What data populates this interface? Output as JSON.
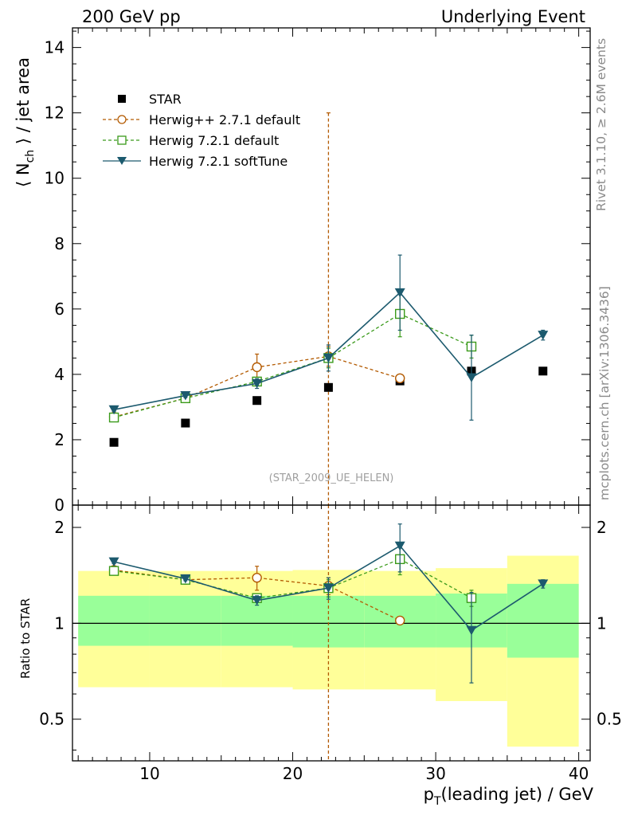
{
  "header": {
    "left": "200 GeV pp",
    "right": "Underlying Event"
  },
  "side_labels": {
    "rivet": "Rivet 3.1.10, ≥ 2.6M events",
    "mcplots": "mcplots.cern.ch [arXiv:1306.3436]"
  },
  "watermark": "(STAR_2009_UE_HELEN)",
  "colors": {
    "star": "#000000",
    "herwigpp": "#b35a00",
    "herwig_default": "#3a9a1a",
    "herwig_soft": "#1c5a6e",
    "band_inner": "#99ff99",
    "band_outer": "#ffff99"
  },
  "chart_data": [
    {
      "id": "main",
      "type": "scatter",
      "ylabel_main": "⟨ N",
      "ylabel_sub": "ch",
      "ylabel_tail": " ⟩ / jet area",
      "ylim": [
        0,
        14.6
      ],
      "xlim": [
        4.6,
        40.8
      ],
      "yticks": [
        0,
        2,
        4,
        6,
        8,
        10,
        12,
        14
      ],
      "ytick_labels": [
        "0",
        "2",
        "4",
        "6",
        "8",
        "10",
        "12",
        "14"
      ],
      "legend": [
        {
          "key": "star",
          "label": "STAR"
        },
        {
          "key": "herwigpp",
          "label": "Herwig++ 2.7.1 default"
        },
        {
          "key": "herwig_default",
          "label": "Herwig 7.2.1 default"
        },
        {
          "key": "herwig_soft",
          "label": "Herwig 7.2.1 softTune"
        }
      ],
      "series": [
        {
          "key": "star",
          "name": "STAR",
          "style": "square-filled",
          "line": "none",
          "x": [
            7.5,
            12.5,
            17.5,
            22.5,
            27.5,
            32.5,
            37.5
          ],
          "y": [
            1.92,
            2.51,
            3.2,
            3.6,
            3.8,
            4.1,
            4.1
          ],
          "err": [
            0,
            0,
            0,
            0,
            0,
            0,
            0
          ]
        },
        {
          "key": "herwigpp",
          "name": "Herwig++ 2.7.1 default",
          "style": "circle-open",
          "line": "dashed",
          "x": [
            7.5,
            12.5,
            17.5,
            22.5,
            27.5
          ],
          "y": [
            2.7,
            3.27,
            4.22,
            4.55,
            3.88
          ],
          "err": [
            0.05,
            0.06,
            0.4,
            0.3,
            0.1
          ]
        },
        {
          "key": "herwig_default",
          "name": "Herwig 7.2.1 default",
          "style": "square-open",
          "line": "dashed",
          "x": [
            7.5,
            12.5,
            17.5,
            22.5,
            27.5,
            32.5
          ],
          "y": [
            2.68,
            3.27,
            3.78,
            4.5,
            5.85,
            4.85
          ],
          "err": [
            0.05,
            0.07,
            0.12,
            0.3,
            0.7,
            0.35
          ]
        },
        {
          "key": "herwig_soft",
          "name": "Herwig 7.2.1 softTune",
          "style": "triangle-down",
          "line": "solid",
          "x": [
            7.5,
            12.5,
            17.5,
            22.5,
            27.5,
            32.5,
            37.5
          ],
          "y": [
            2.92,
            3.35,
            3.72,
            4.5,
            6.5,
            3.9,
            5.2
          ],
          "err": [
            0.05,
            0.06,
            0.15,
            0.4,
            1.15,
            1.3,
            0.15
          ]
        }
      ],
      "spike": {
        "x": 22.5,
        "ymin": 0,
        "ymax": 12.0,
        "key": "herwigpp"
      }
    },
    {
      "id": "ratio",
      "type": "scatter",
      "ylabel": "Ratio to STAR",
      "yscale": "log",
      "ylim": [
        0.37,
        2.35
      ],
      "xlim": [
        4.6,
        40.8
      ],
      "yticks": [
        0.5,
        1,
        2
      ],
      "ytick_labels": [
        "0.5",
        "1",
        "2"
      ],
      "xticks": [
        10,
        20,
        30,
        40
      ],
      "xtick_labels": [
        "10",
        "20",
        "30",
        "40"
      ],
      "xlabel_main": "p",
      "xlabel_sub": "T",
      "xlabel_tail": "(leading jet) / GeV",
      "bands": {
        "edges": [
          5,
          10,
          15,
          20,
          25,
          30,
          35,
          40
        ],
        "inner_lo": [
          0.85,
          0.85,
          0.85,
          0.84,
          0.84,
          0.84,
          0.78
        ],
        "inner_hi": [
          1.22,
          1.22,
          1.22,
          1.22,
          1.22,
          1.24,
          1.33
        ],
        "outer_lo": [
          0.63,
          0.63,
          0.63,
          0.62,
          0.62,
          0.57,
          0.41
        ],
        "outer_hi": [
          1.46,
          1.46,
          1.46,
          1.47,
          1.46,
          1.49,
          1.63
        ]
      },
      "series": [
        {
          "key": "herwigpp",
          "style": "circle-open",
          "line": "dashed",
          "x": [
            7.5,
            12.5,
            17.5,
            22.5,
            27.5
          ],
          "y": [
            1.47,
            1.37,
            1.39,
            1.31,
            1.02
          ],
          "err": [
            0.02,
            0.02,
            0.12,
            0.08,
            0.01
          ]
        },
        {
          "key": "herwig_default",
          "style": "square-open",
          "line": "dashed",
          "x": [
            7.5,
            12.5,
            17.5,
            22.5,
            27.5,
            32.5
          ],
          "y": [
            1.46,
            1.37,
            1.2,
            1.29,
            1.59,
            1.2
          ],
          "err": [
            0.02,
            0.02,
            0.03,
            0.08,
            0.17,
            0.07
          ]
        },
        {
          "key": "herwig_soft",
          "style": "triangle-down",
          "line": "solid",
          "x": [
            7.5,
            12.5,
            17.5,
            22.5,
            27.5,
            32.5,
            37.5
          ],
          "y": [
            1.56,
            1.38,
            1.18,
            1.29,
            1.75,
            0.95,
            1.33
          ],
          "err": [
            0.02,
            0.02,
            0.04,
            0.1,
            0.3,
            0.3,
            0.04
          ]
        }
      ],
      "spike": {
        "x": 22.5,
        "key": "herwigpp"
      }
    }
  ]
}
